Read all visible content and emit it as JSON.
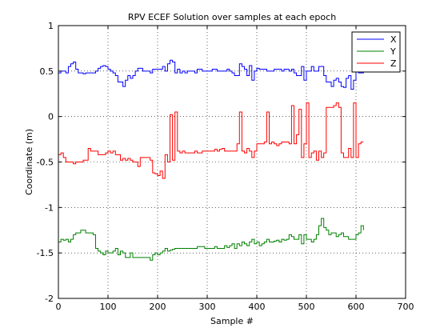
{
  "chart_data": {
    "type": "line",
    "title": "RPV ECEF Solution over samples at each epoch",
    "xlabel": "Sample #",
    "ylabel": "Coordinate (m)",
    "xlim": [
      0,
      700
    ],
    "ylim": [
      -2,
      1
    ],
    "xticks": [
      0,
      100,
      200,
      300,
      400,
      500,
      600,
      700
    ],
    "yticks": [
      -2,
      -1.5,
      -1,
      -0.5,
      0,
      0.5,
      1
    ],
    "xtick_labels": [
      "0",
      "100",
      "200",
      "300",
      "400",
      "500",
      "600",
      "700"
    ],
    "ytick_labels": [
      "-2",
      "-1.5",
      "-1",
      "-0.5",
      "0",
      "0.5",
      "1"
    ],
    "grid": true,
    "legend_position": "top-right",
    "series": [
      {
        "name": "X",
        "color": "#0000ff",
        "x": [
          0,
          5,
          10,
          15,
          20,
          25,
          30,
          35,
          40,
          45,
          50,
          55,
          60,
          65,
          70,
          75,
          80,
          85,
          90,
          95,
          100,
          105,
          110,
          115,
          120,
          125,
          130,
          135,
          140,
          145,
          150,
          155,
          160,
          165,
          170,
          175,
          180,
          185,
          190,
          195,
          200,
          205,
          210,
          215,
          220,
          225,
          230,
          235,
          240,
          245,
          250,
          255,
          260,
          265,
          270,
          275,
          280,
          285,
          290,
          295,
          300,
          305,
          310,
          315,
          320,
          325,
          330,
          335,
          340,
          345,
          350,
          355,
          360,
          365,
          370,
          375,
          380,
          385,
          390,
          395,
          400,
          405,
          410,
          415,
          420,
          425,
          430,
          435,
          440,
          445,
          450,
          455,
          460,
          465,
          470,
          475,
          480,
          485,
          490,
          495,
          500,
          505,
          510,
          515,
          520,
          525,
          530,
          535,
          540,
          545,
          550,
          555,
          560,
          565,
          570,
          575,
          580,
          585,
          590,
          595,
          600,
          605,
          610,
          615
        ],
        "values": [
          0.48,
          0.5,
          0.5,
          0.48,
          0.55,
          0.58,
          0.6,
          0.52,
          0.48,
          0.48,
          0.47,
          0.48,
          0.48,
          0.48,
          0.48,
          0.5,
          0.53,
          0.55,
          0.56,
          0.55,
          0.52,
          0.5,
          0.48,
          0.45,
          0.38,
          0.38,
          0.33,
          0.4,
          0.45,
          0.42,
          0.45,
          0.5,
          0.53,
          0.53,
          0.5,
          0.5,
          0.5,
          0.48,
          0.52,
          0.52,
          0.52,
          0.52,
          0.55,
          0.5,
          0.58,
          0.62,
          0.6,
          0.48,
          0.52,
          0.48,
          0.5,
          0.48,
          0.5,
          0.5,
          0.5,
          0.48,
          0.52,
          0.52,
          0.5,
          0.5,
          0.5,
          0.5,
          0.52,
          0.52,
          0.5,
          0.5,
          0.5,
          0.5,
          0.52,
          0.5,
          0.48,
          0.45,
          0.45,
          0.58,
          0.55,
          0.52,
          0.45,
          0.56,
          0.4,
          0.5,
          0.53,
          0.52,
          0.52,
          0.52,
          0.5,
          0.5,
          0.5,
          0.52,
          0.52,
          0.52,
          0.5,
          0.52,
          0.52,
          0.5,
          0.52,
          0.48,
          0.45,
          0.45,
          0.55,
          0.4,
          0.5,
          0.5,
          0.55,
          0.5,
          0.5,
          0.55,
          0.55,
          0.45,
          0.38,
          0.38,
          0.33,
          0.4,
          0.42,
          0.38,
          0.33,
          0.32,
          0.42,
          0.45,
          0.3,
          0.4,
          0.5,
          0.48,
          0.48,
          0.5
        ]
      },
      {
        "name": "Y",
        "color": "#008000",
        "x": [
          0,
          5,
          10,
          15,
          20,
          25,
          30,
          35,
          40,
          45,
          50,
          55,
          60,
          65,
          70,
          75,
          80,
          85,
          90,
          95,
          100,
          105,
          110,
          115,
          120,
          125,
          130,
          135,
          140,
          145,
          150,
          155,
          160,
          165,
          170,
          175,
          180,
          185,
          190,
          195,
          200,
          205,
          210,
          215,
          220,
          225,
          230,
          235,
          240,
          245,
          250,
          255,
          260,
          265,
          270,
          275,
          280,
          285,
          290,
          295,
          300,
          305,
          310,
          315,
          320,
          325,
          330,
          335,
          340,
          345,
          350,
          355,
          360,
          365,
          370,
          375,
          380,
          385,
          390,
          395,
          400,
          405,
          410,
          415,
          420,
          425,
          430,
          435,
          440,
          445,
          450,
          455,
          460,
          465,
          470,
          475,
          480,
          485,
          490,
          495,
          500,
          505,
          510,
          515,
          520,
          525,
          530,
          535,
          540,
          545,
          550,
          555,
          560,
          565,
          570,
          575,
          580,
          585,
          590,
          595,
          600,
          605,
          610,
          615
        ],
        "values": [
          -1.38,
          -1.35,
          -1.36,
          -1.35,
          -1.38,
          -1.35,
          -1.3,
          -1.28,
          -1.28,
          -1.25,
          -1.25,
          -1.28,
          -1.28,
          -1.28,
          -1.3,
          -1.45,
          -1.48,
          -1.5,
          -1.52,
          -1.48,
          -1.5,
          -1.5,
          -1.48,
          -1.45,
          -1.52,
          -1.48,
          -1.5,
          -1.55,
          -1.55,
          -1.5,
          -1.55,
          -1.55,
          -1.55,
          -1.55,
          -1.55,
          -1.55,
          -1.55,
          -1.58,
          -1.52,
          -1.5,
          -1.52,
          -1.5,
          -1.48,
          -1.45,
          -1.48,
          -1.47,
          -1.46,
          -1.45,
          -1.45,
          -1.45,
          -1.45,
          -1.45,
          -1.45,
          -1.45,
          -1.45,
          -1.45,
          -1.43,
          -1.43,
          -1.43,
          -1.45,
          -1.45,
          -1.45,
          -1.45,
          -1.43,
          -1.45,
          -1.45,
          -1.45,
          -1.42,
          -1.44,
          -1.42,
          -1.4,
          -1.45,
          -1.4,
          -1.42,
          -1.38,
          -1.4,
          -1.42,
          -1.38,
          -1.35,
          -1.4,
          -1.38,
          -1.42,
          -1.4,
          -1.38,
          -1.35,
          -1.38,
          -1.38,
          -1.37,
          -1.36,
          -1.38,
          -1.35,
          -1.36,
          -1.35,
          -1.3,
          -1.32,
          -1.35,
          -1.35,
          -1.3,
          -1.4,
          -1.3,
          -1.35,
          -1.35,
          -1.38,
          -1.35,
          -1.3,
          -1.2,
          -1.12,
          -1.22,
          -1.25,
          -1.3,
          -1.28,
          -1.28,
          -1.32,
          -1.3,
          -1.28,
          -1.32,
          -1.32,
          -1.35,
          -1.35,
          -1.35,
          -1.3,
          -1.28,
          -1.2,
          -1.25
        ]
      },
      {
        "name": "Z",
        "color": "#ff0000",
        "x": [
          0,
          5,
          10,
          15,
          20,
          25,
          30,
          35,
          40,
          45,
          50,
          55,
          60,
          65,
          70,
          75,
          80,
          85,
          90,
          95,
          100,
          105,
          110,
          115,
          120,
          125,
          130,
          135,
          140,
          145,
          150,
          155,
          160,
          165,
          170,
          175,
          180,
          185,
          190,
          195,
          200,
          205,
          210,
          215,
          220,
          225,
          230,
          235,
          240,
          245,
          250,
          255,
          260,
          265,
          270,
          275,
          280,
          285,
          290,
          295,
          300,
          305,
          310,
          315,
          320,
          325,
          330,
          335,
          340,
          345,
          350,
          355,
          360,
          365,
          370,
          375,
          380,
          385,
          390,
          395,
          400,
          405,
          410,
          415,
          420,
          425,
          430,
          435,
          440,
          445,
          450,
          455,
          460,
          465,
          470,
          475,
          480,
          485,
          490,
          495,
          500,
          505,
          510,
          515,
          520,
          525,
          530,
          535,
          540,
          545,
          550,
          555,
          560,
          565,
          570,
          575,
          580,
          585,
          590,
          595,
          600,
          605,
          610,
          615
        ],
        "values": [
          -0.42,
          -0.4,
          -0.45,
          -0.5,
          -0.5,
          -0.5,
          -0.52,
          -0.5,
          -0.5,
          -0.5,
          -0.48,
          -0.48,
          -0.35,
          -0.38,
          -0.38,
          -0.38,
          -0.42,
          -0.42,
          -0.42,
          -0.4,
          -0.38,
          -0.4,
          -0.38,
          -0.42,
          -0.42,
          -0.48,
          -0.46,
          -0.48,
          -0.46,
          -0.48,
          -0.5,
          -0.5,
          -0.55,
          -0.45,
          -0.45,
          -0.45,
          -0.45,
          -0.48,
          -0.62,
          -0.63,
          -0.65,
          -0.6,
          -0.68,
          -0.42,
          -0.5,
          0.02,
          -0.48,
          0.05,
          -0.38,
          -0.4,
          -0.38,
          -0.4,
          -0.4,
          -0.4,
          -0.4,
          -0.38,
          -0.4,
          -0.4,
          -0.38,
          -0.38,
          -0.38,
          -0.38,
          -0.38,
          -0.36,
          -0.38,
          -0.36,
          -0.35,
          -0.38,
          -0.38,
          -0.38,
          -0.38,
          -0.38,
          -0.3,
          0.05,
          -0.38,
          -0.4,
          -0.35,
          -0.38,
          -0.45,
          -0.38,
          -0.3,
          -0.3,
          -0.3,
          -0.28,
          0.05,
          -0.3,
          -0.28,
          -0.3,
          -0.32,
          -0.3,
          -0.28,
          -0.28,
          -0.28,
          -0.3,
          0.12,
          -0.3,
          -0.2,
          0.08,
          -0.45,
          -0.3,
          0.15,
          -0.45,
          -0.4,
          -0.38,
          -0.48,
          -0.38,
          -0.45,
          -0.4,
          0.1,
          0.1,
          0.1,
          0.12,
          0.15,
          0.1,
          -0.4,
          -0.45,
          -0.45,
          -0.35,
          -0.45,
          0.15,
          -0.45,
          -0.3,
          -0.28,
          -0.28
        ]
      }
    ]
  }
}
